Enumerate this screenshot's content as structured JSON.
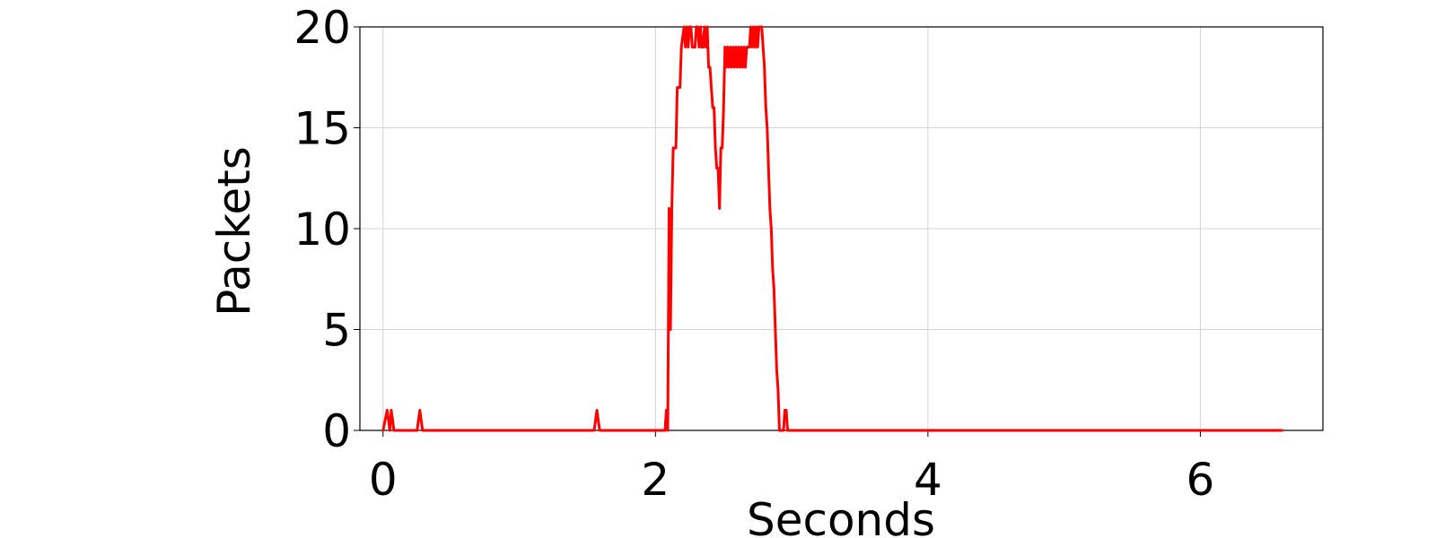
{
  "chart_data": {
    "type": "line",
    "title": "",
    "xlabel": "Seconds",
    "ylabel": "Packets",
    "xlim": [
      -0.17,
      6.9
    ],
    "ylim": [
      0,
      20
    ],
    "x_ticks": [
      0,
      2,
      4,
      6
    ],
    "y_ticks": [
      0,
      5,
      10,
      15,
      20
    ],
    "grid": true,
    "series": [
      {
        "color": "#ff0000",
        "x": [
          0.0,
          0.03,
          0.05,
          0.06,
          0.08,
          0.1,
          0.25,
          0.27,
          0.29,
          1.55,
          1.57,
          1.59,
          2.07,
          2.08,
          2.09,
          2.1,
          2.11,
          2.12,
          2.13,
          2.15,
          2.16,
          2.18,
          2.19,
          2.21,
          2.22,
          2.23,
          2.24,
          2.25,
          2.26,
          2.27,
          2.28,
          2.29,
          2.3,
          2.31,
          2.32,
          2.33,
          2.34,
          2.35,
          2.36,
          2.37,
          2.38,
          2.39,
          2.4,
          2.41,
          2.42,
          2.43,
          2.44,
          2.45,
          2.46,
          2.47,
          2.48,
          2.49,
          2.5,
          2.51,
          2.52,
          2.53,
          2.54,
          2.55,
          2.56,
          2.57,
          2.58,
          2.59,
          2.6,
          2.61,
          2.62,
          2.63,
          2.64,
          2.65,
          2.66,
          2.67,
          2.68,
          2.69,
          2.7,
          2.71,
          2.72,
          2.73,
          2.74,
          2.75,
          2.76,
          2.77,
          2.78,
          2.79,
          2.8,
          2.81,
          2.82,
          2.83,
          2.84,
          2.85,
          2.86,
          2.87,
          2.88,
          2.89,
          2.9,
          2.91,
          2.92,
          2.93,
          2.94,
          2.95,
          2.96,
          2.97,
          2.98,
          2.99,
          3.0,
          3.01,
          3.02,
          3.03,
          3.04,
          3.05,
          3.06,
          3.07,
          3.08,
          3.1,
          3.52,
          3.54,
          3.57,
          3.59,
          6.6
        ],
        "values": [
          0,
          1,
          0,
          1,
          0,
          0,
          0,
          1,
          0,
          0,
          1,
          0,
          0,
          1,
          0,
          11,
          5,
          11,
          14,
          14,
          17,
          17,
          19,
          20,
          19,
          20,
          19,
          20,
          20,
          19,
          19,
          19,
          20,
          20,
          19,
          20,
          19,
          19,
          20,
          19,
          20,
          18,
          18,
          17,
          16,
          16,
          14,
          13,
          13,
          11,
          14,
          14,
          16,
          19,
          18,
          19,
          18,
          19,
          18,
          19,
          18,
          19,
          18,
          19,
          18,
          19,
          18,
          19,
          18,
          19,
          19,
          19,
          20,
          19,
          20,
          19,
          20,
          19,
          20,
          20,
          20,
          19,
          18,
          16,
          15,
          13,
          11,
          10,
          8,
          7,
          5,
          3,
          2,
          0,
          0,
          0,
          0,
          1,
          1,
          0,
          0,
          0,
          0,
          0,
          0,
          0,
          0,
          0,
          0,
          0,
          0,
          0,
          0,
          0,
          0,
          0,
          0
        ]
      }
    ]
  }
}
